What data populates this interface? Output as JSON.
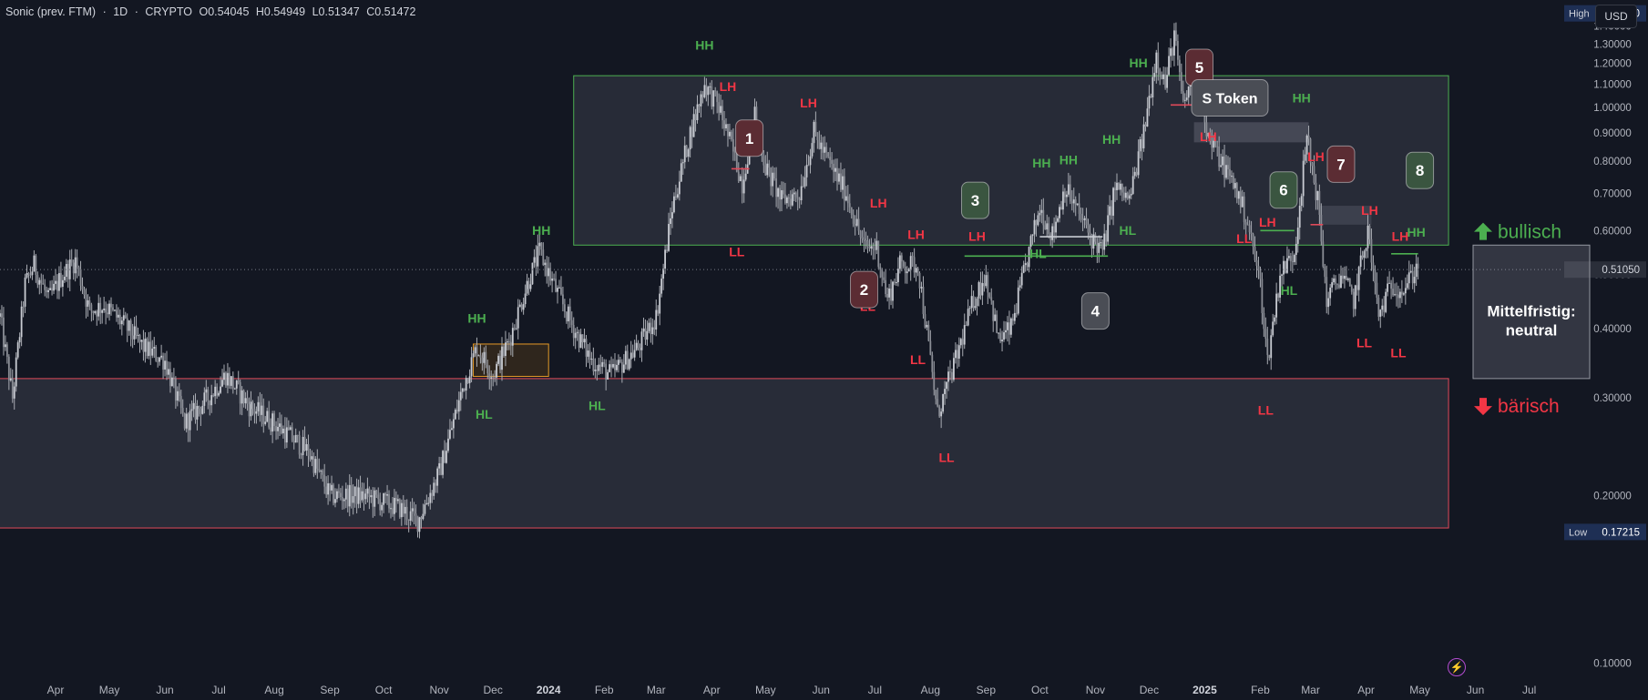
{
  "header": {
    "symbol": "Sonic (prev. FTM)",
    "sep1": "·",
    "interval": "1D",
    "sep2": "·",
    "exchange": "CRYPTO",
    "open": "O0.54045",
    "high": "H0.54949",
    "low": "L0.51347",
    "close": "C0.51472"
  },
  "currency_button": "USD",
  "chart_data": {
    "type": "candlestick",
    "y_scale": "log",
    "ylim": [
      0.095,
      1.56
    ],
    "x_start": "2023-03-01",
    "x_end": "2025-07-20",
    "y_ticks": [
      "1.40000",
      "1.30000",
      "1.20000",
      "1.10000",
      "1.00000",
      "0.90000",
      "0.80000",
      "0.70000",
      "0.60000",
      "0.50000",
      "0.40000",
      "0.30000",
      "0.20000",
      "0.10000"
    ],
    "x_ticks": [
      {
        "date": "2023-04-01",
        "label": "Apr",
        "bold": false
      },
      {
        "date": "2023-05-01",
        "label": "May",
        "bold": false
      },
      {
        "date": "2023-06-01",
        "label": "Jun",
        "bold": false
      },
      {
        "date": "2023-07-01",
        "label": "Jul",
        "bold": false
      },
      {
        "date": "2023-08-01",
        "label": "Aug",
        "bold": false
      },
      {
        "date": "2023-09-01",
        "label": "Sep",
        "bold": false
      },
      {
        "date": "2023-10-01",
        "label": "Oct",
        "bold": false
      },
      {
        "date": "2023-11-01",
        "label": "Nov",
        "bold": false
      },
      {
        "date": "2023-12-01",
        "label": "Dec",
        "bold": false
      },
      {
        "date": "2024-01-01",
        "label": "2024",
        "bold": true
      },
      {
        "date": "2024-02-01",
        "label": "Feb",
        "bold": false
      },
      {
        "date": "2024-03-01",
        "label": "Mar",
        "bold": false
      },
      {
        "date": "2024-04-01",
        "label": "Apr",
        "bold": false
      },
      {
        "date": "2024-05-01",
        "label": "May",
        "bold": false
      },
      {
        "date": "2024-06-01",
        "label": "Jun",
        "bold": false
      },
      {
        "date": "2024-07-01",
        "label": "Jul",
        "bold": false
      },
      {
        "date": "2024-08-01",
        "label": "Aug",
        "bold": false
      },
      {
        "date": "2024-09-01",
        "label": "Sep",
        "bold": false
      },
      {
        "date": "2024-10-01",
        "label": "Oct",
        "bold": false
      },
      {
        "date": "2024-11-01",
        "label": "Nov",
        "bold": false
      },
      {
        "date": "2024-12-01",
        "label": "Dec",
        "bold": false
      },
      {
        "date": "2025-01-01",
        "label": "2025",
        "bold": true
      },
      {
        "date": "2025-02-01",
        "label": "Feb",
        "bold": false
      },
      {
        "date": "2025-03-01",
        "label": "Mar",
        "bold": false
      },
      {
        "date": "2025-04-01",
        "label": "Apr",
        "bold": false
      },
      {
        "date": "2025-05-01",
        "label": "May",
        "bold": false
      },
      {
        "date": "2025-06-01",
        "label": "Jun",
        "bold": false
      },
      {
        "date": "2025-07-01",
        "label": "Jul",
        "bold": false
      }
    ],
    "price_path": [
      [
        "2023-03-01",
        0.42
      ],
      [
        "2023-03-08",
        0.3
      ],
      [
        "2023-03-15",
        0.48
      ],
      [
        "2023-03-20",
        0.52
      ],
      [
        "2023-03-28",
        0.45
      ],
      [
        "2023-04-05",
        0.5
      ],
      [
        "2023-04-12",
        0.53
      ],
      [
        "2023-04-20",
        0.43
      ],
      [
        "2023-04-28",
        0.44
      ],
      [
        "2023-05-08",
        0.41
      ],
      [
        "2023-05-20",
        0.37
      ],
      [
        "2023-06-01",
        0.35
      ],
      [
        "2023-06-12",
        0.27
      ],
      [
        "2023-06-25",
        0.3
      ],
      [
        "2023-07-05",
        0.33
      ],
      [
        "2023-07-18",
        0.29
      ],
      [
        "2023-08-01",
        0.27
      ],
      [
        "2023-08-20",
        0.24
      ],
      [
        "2023-09-01",
        0.2
      ],
      [
        "2023-09-20",
        0.2
      ],
      [
        "2023-10-10",
        0.19
      ],
      [
        "2023-10-20",
        0.18
      ],
      [
        "2023-11-01",
        0.22
      ],
      [
        "2023-11-15",
        0.32
      ],
      [
        "2023-11-22",
        0.37
      ],
      [
        "2023-12-01",
        0.33
      ],
      [
        "2023-12-10",
        0.38
      ],
      [
        "2023-12-20",
        0.48
      ],
      [
        "2023-12-27",
        0.55
      ],
      [
        "2024-01-05",
        0.47
      ],
      [
        "2024-01-15",
        0.4
      ],
      [
        "2024-01-25",
        0.35
      ],
      [
        "2024-02-05",
        0.33
      ],
      [
        "2024-02-20",
        0.37
      ],
      [
        "2024-03-01",
        0.42
      ],
      [
        "2024-03-10",
        0.66
      ],
      [
        "2024-03-20",
        0.9
      ],
      [
        "2024-03-28",
        1.1
      ],
      [
        "2024-04-05",
        1.0
      ],
      [
        "2024-04-12",
        0.85
      ],
      [
        "2024-04-18",
        0.73
      ],
      [
        "2024-04-25",
        0.97
      ],
      [
        "2024-05-01",
        0.78
      ],
      [
        "2024-05-10",
        0.68
      ],
      [
        "2024-05-20",
        0.7
      ],
      [
        "2024-05-28",
        0.9
      ],
      [
        "2024-06-05",
        0.8
      ],
      [
        "2024-06-15",
        0.7
      ],
      [
        "2024-06-25",
        0.56
      ],
      [
        "2024-07-02",
        0.56
      ],
      [
        "2024-07-08",
        0.45
      ],
      [
        "2024-07-15",
        0.52
      ],
      [
        "2024-07-25",
        0.52
      ],
      [
        "2024-08-05",
        0.28
      ],
      [
        "2024-08-15",
        0.35
      ],
      [
        "2024-08-25",
        0.45
      ],
      [
        "2024-09-01",
        0.5
      ],
      [
        "2024-09-08",
        0.38
      ],
      [
        "2024-09-15",
        0.4
      ],
      [
        "2024-09-25",
        0.55
      ],
      [
        "2024-10-01",
        0.66
      ],
      [
        "2024-10-08",
        0.59
      ],
      [
        "2024-10-15",
        0.72
      ],
      [
        "2024-10-22",
        0.65
      ],
      [
        "2024-10-30",
        0.58
      ],
      [
        "2024-11-05",
        0.55
      ],
      [
        "2024-11-12",
        0.72
      ],
      [
        "2024-11-20",
        0.68
      ],
      [
        "2024-11-28",
        0.9
      ],
      [
        "2024-12-05",
        1.25
      ],
      [
        "2024-12-10",
        1.1
      ],
      [
        "2024-12-15",
        1.35
      ],
      [
        "2024-12-20",
        1.0
      ],
      [
        "2024-12-27",
        1.2
      ],
      [
        "2025-01-03",
        0.88
      ],
      [
        "2025-01-10",
        0.8
      ],
      [
        "2025-01-18",
        0.72
      ],
      [
        "2025-01-25",
        0.62
      ],
      [
        "2025-02-01",
        0.48
      ],
      [
        "2025-02-05",
        0.35
      ],
      [
        "2025-02-12",
        0.5
      ],
      [
        "2025-02-20",
        0.55
      ],
      [
        "2025-02-27",
        0.88
      ],
      [
        "2025-03-05",
        0.68
      ],
      [
        "2025-03-10",
        0.45
      ],
      [
        "2025-03-18",
        0.5
      ],
      [
        "2025-03-25",
        0.45
      ],
      [
        "2025-04-02",
        0.6
      ],
      [
        "2025-04-08",
        0.42
      ],
      [
        "2025-04-15",
        0.48
      ],
      [
        "2025-04-22",
        0.47
      ],
      [
        "2025-04-30",
        0.52
      ]
    ],
    "high_label": {
      "label": "High",
      "value": "1.47600",
      "price": 1.476
    },
    "low_label": {
      "label": "Low",
      "value": "0.17215",
      "price": 0.17215
    },
    "last_price": {
      "value": "0.51050",
      "price": 0.5105
    },
    "zones": [
      {
        "type": "bullish-range",
        "x1": "2024-01-15",
        "x2": "2025-05-17",
        "y1": 0.565,
        "y2": 1.14
      },
      {
        "type": "bearish-range",
        "x1": "2023-02-20",
        "x2": "2025-05-17",
        "y1": 0.175,
        "y2": 0.325
      }
    ],
    "markers": [
      {
        "label": "HH",
        "kind": "high",
        "date": "2023-11-22",
        "price": 0.41
      },
      {
        "label": "HL",
        "kind": "low",
        "date": "2023-11-26",
        "price": 0.275
      },
      {
        "label": "HH",
        "kind": "high",
        "date": "2023-12-28",
        "price": 0.59
      },
      {
        "label": "HL",
        "kind": "low",
        "date": "2024-01-28",
        "price": 0.285
      },
      {
        "label": "HH",
        "kind": "high",
        "date": "2024-03-28",
        "price": 1.27
      },
      {
        "label": "LH",
        "kind": "lower",
        "date": "2024-04-10",
        "price": 1.07
      },
      {
        "label": "LL",
        "kind": "lower",
        "date": "2024-04-15",
        "price": 0.54
      },
      {
        "label": "LH",
        "kind": "lower",
        "date": "2024-05-25",
        "price": 1.0
      },
      {
        "label": "LH",
        "kind": "lower",
        "date": "2024-07-03",
        "price": 0.66
      },
      {
        "label": "LL",
        "kind": "lower",
        "date": "2024-06-27",
        "price": 0.43
      },
      {
        "label": "LH",
        "kind": "lower",
        "date": "2024-07-24",
        "price": 0.58
      },
      {
        "label": "LL",
        "kind": "lower",
        "date": "2024-07-25",
        "price": 0.345
      },
      {
        "label": "LL",
        "kind": "lower",
        "date": "2024-08-10",
        "price": 0.23
      },
      {
        "label": "LH",
        "kind": "lower",
        "date": "2024-08-27",
        "price": 0.575
      },
      {
        "label": "HH",
        "kind": "high",
        "date": "2024-10-02",
        "price": 0.78
      },
      {
        "label": "HH",
        "kind": "high",
        "date": "2024-10-17",
        "price": 0.79
      },
      {
        "label": "HL",
        "kind": "low",
        "date": "2024-09-30",
        "price": 0.535
      },
      {
        "label": "HH",
        "kind": "high",
        "date": "2024-11-10",
        "price": 0.86
      },
      {
        "label": "HL",
        "kind": "low",
        "date": "2024-11-19",
        "price": 0.59
      },
      {
        "label": "HH",
        "kind": "high",
        "date": "2024-11-25",
        "price": 1.18
      },
      {
        "label": "HH",
        "kind": "high",
        "date": "2024-12-10",
        "price": 1.58
      },
      {
        "label": "LH",
        "kind": "lower",
        "date": "2025-01-03",
        "price": 0.87
      },
      {
        "label": "LL",
        "kind": "lower",
        "date": "2025-01-23",
        "price": 0.57
      },
      {
        "label": "LH",
        "kind": "lower",
        "date": "2025-02-05",
        "price": 0.61
      },
      {
        "label": "LL",
        "kind": "lower",
        "date": "2025-02-04",
        "price": 0.28
      },
      {
        "label": "HL",
        "kind": "low",
        "date": "2025-02-17",
        "price": 0.46
      },
      {
        "label": "HH",
        "kind": "high",
        "date": "2025-02-24",
        "price": 1.02
      },
      {
        "label": "LH",
        "kind": "lower",
        "date": "2025-03-04",
        "price": 0.8
      },
      {
        "label": "LH",
        "kind": "lower",
        "date": "2025-04-03",
        "price": 0.64
      },
      {
        "label": "LL",
        "kind": "lower",
        "date": "2025-03-31",
        "price": 0.37
      },
      {
        "label": "LH",
        "kind": "lower",
        "date": "2025-04-20",
        "price": 0.575
      },
      {
        "label": "LL",
        "kind": "lower",
        "date": "2025-04-19",
        "price": 0.355
      },
      {
        "label": "HH",
        "kind": "high",
        "date": "2025-04-29",
        "price": 0.585
      }
    ],
    "callouts": [
      {
        "label": "1",
        "color": "#5b2c33",
        "date": "2024-04-22",
        "price": 0.88
      },
      {
        "label": "2",
        "color": "#5b2c33",
        "date": "2024-06-25",
        "price": 0.47
      },
      {
        "label": "3",
        "color": "#3a5540",
        "date": "2024-08-26",
        "price": 0.68
      },
      {
        "label": "4",
        "color": "#4a4d55",
        "date": "2024-11-01",
        "price": 0.43
      },
      {
        "label": "5",
        "color": "#5b2c33",
        "date": "2024-12-29",
        "price": 1.18
      },
      {
        "label": "S Token",
        "color": "#4a4d55",
        "date": "2025-01-15",
        "price": 1.04
      },
      {
        "label": "6",
        "color": "#3a5540",
        "date": "2025-02-14",
        "price": 0.71
      },
      {
        "label": "7",
        "color": "#5b2c33",
        "date": "2025-03-18",
        "price": 0.79
      },
      {
        "label": "8",
        "color": "#3a5540",
        "date": "2025-05-01",
        "price": 0.77
      }
    ],
    "side_labels": [
      {
        "text": "bullisch",
        "color": "#4caf50",
        "price": 0.597,
        "arrow": "up"
      },
      {
        "text": "bärisch",
        "color": "#f23645",
        "price": 0.29,
        "arrow": "down"
      }
    ],
    "neutral_box": {
      "text1": "Mittelfristig:",
      "text2": "neutral"
    }
  }
}
